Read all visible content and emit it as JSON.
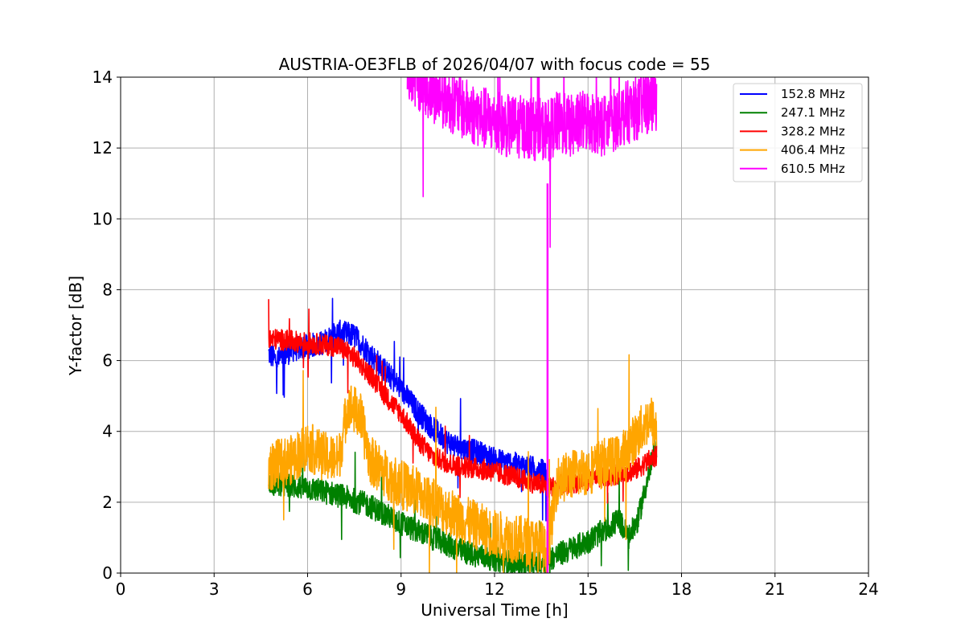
{
  "chart_data": {
    "type": "line",
    "title": "AUSTRIA-OE3FLB of 2026/04/07 with focus code = 55",
    "xlabel": "Universal Time [h]",
    "ylabel": "Y-factor [dB]",
    "xlim": [
      0,
      24
    ],
    "ylim": [
      0,
      14
    ],
    "xticks": [
      0,
      3,
      6,
      9,
      12,
      15,
      18,
      21,
      24
    ],
    "yticks": [
      0,
      2,
      4,
      6,
      8,
      10,
      12,
      14
    ],
    "grid": true,
    "legend_position": "top-right",
    "series": [
      {
        "name": "152.8 MHz",
        "color": "#0000ff",
        "x": [
          4.75,
          5.0,
          5.5,
          6.0,
          6.5,
          7.0,
          7.5,
          8.0,
          8.5,
          9.0,
          9.5,
          10.0,
          10.5,
          11.0,
          11.5,
          12.0,
          12.5,
          13.0,
          13.5,
          13.7
        ],
        "y": [
          6.2,
          6.0,
          6.3,
          6.4,
          6.5,
          6.8,
          6.7,
          6.2,
          5.7,
          5.2,
          4.6,
          4.1,
          3.7,
          3.5,
          3.4,
          3.2,
          3.1,
          3.0,
          2.9,
          2.7
        ],
        "noise": 0.35
      },
      {
        "name": "247.1 MHz",
        "color": "#008000",
        "x": [
          4.75,
          5.0,
          6.0,
          7.0,
          8.0,
          9.0,
          10.0,
          11.0,
          12.0,
          12.5,
          13.0,
          13.5,
          14.0,
          14.5,
          15.0,
          15.5,
          16.0,
          16.3,
          16.6,
          17.0,
          17.2
        ],
        "y": [
          2.6,
          2.5,
          2.4,
          2.2,
          1.9,
          1.4,
          1.0,
          0.6,
          0.4,
          0.3,
          0.25,
          0.3,
          0.5,
          0.7,
          0.9,
          1.2,
          1.5,
          1.0,
          1.5,
          3.0,
          3.6
        ],
        "noise": 0.35
      },
      {
        "name": "328.2 MHz",
        "color": "#ff0000",
        "x": [
          4.75,
          5.0,
          6.0,
          7.0,
          7.5,
          8.0,
          8.5,
          9.0,
          9.5,
          10.0,
          10.5,
          11.0,
          11.5,
          12.0,
          12.5,
          13.0,
          13.5,
          13.7,
          16.5,
          17.0,
          17.2
        ],
        "y": [
          6.6,
          6.6,
          6.5,
          6.4,
          6.1,
          5.6,
          5.0,
          4.5,
          3.8,
          3.3,
          3.1,
          3.0,
          2.95,
          2.85,
          2.75,
          2.6,
          2.5,
          2.4,
          2.9,
          3.2,
          3.3
        ],
        "noise": 0.3
      },
      {
        "name": "406.4 MHz",
        "color": "#ffa500",
        "x": [
          4.75,
          5.5,
          6.0,
          6.5,
          7.0,
          7.3,
          7.7,
          8.0,
          8.5,
          9.0,
          9.5,
          10.0,
          11.0,
          12.0,
          13.0,
          13.5,
          13.7,
          14.0,
          14.5,
          15.0,
          15.5,
          16.0,
          16.5,
          17.0,
          17.2
        ],
        "y": [
          3.0,
          3.2,
          3.6,
          3.3,
          3.2,
          4.8,
          4.4,
          3.2,
          2.8,
          2.5,
          2.3,
          2.0,
          1.5,
          1.1,
          0.9,
          0.8,
          0.5,
          2.6,
          2.8,
          2.9,
          3.1,
          3.2,
          3.8,
          4.4,
          4.0
        ],
        "noise": 0.7
      },
      {
        "name": "610.5 MHz",
        "color": "#ff00ff",
        "x": [
          9.2,
          9.5,
          10.0,
          10.5,
          11.0,
          11.5,
          12.0,
          12.5,
          13.0,
          13.5,
          13.7,
          14.0,
          14.5,
          15.0,
          15.5,
          16.0,
          16.5,
          17.0,
          17.2
        ],
        "y": [
          14.2,
          14.0,
          13.6,
          13.4,
          13.1,
          12.9,
          12.7,
          12.6,
          12.6,
          12.5,
          12.5,
          12.7,
          12.6,
          12.8,
          12.6,
          12.9,
          13.1,
          13.3,
          13.4
        ],
        "noise": 0.9
      }
    ],
    "spike": {
      "series": "610.5 MHz",
      "x": 13.7,
      "y_top": 11.0,
      "y_bottom": 0
    }
  }
}
